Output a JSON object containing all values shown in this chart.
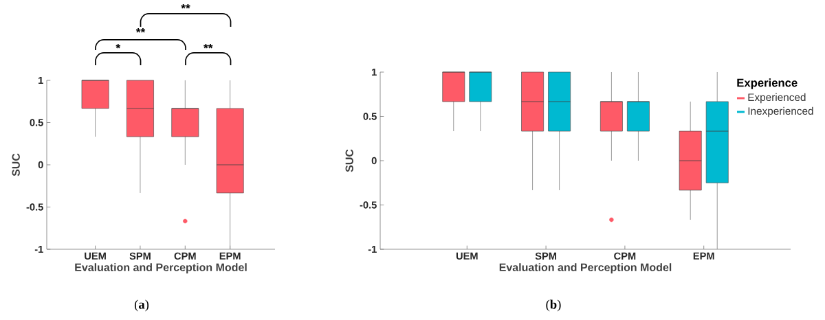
{
  "chart_data": [
    {
      "type": "box",
      "categories": [
        "UEM",
        "SPM",
        "CPM",
        "EPM"
      ],
      "xlabel": "Evaluation and Perception Model",
      "ylabel": "SUC",
      "ylim": [
        -1,
        1
      ],
      "yticks": [
        -1,
        -0.5,
        0,
        0.5,
        1
      ],
      "grid": false,
      "legend": false,
      "series": [
        {
          "color": "#fe5a67",
          "boxes": [
            {
              "low": 0.333,
              "q1": 0.667,
              "median": 1,
              "q3": 1,
              "high": 1
            },
            {
              "low": -0.333,
              "q1": 0.333,
              "median": 0.667,
              "q3": 1,
              "high": 1
            },
            {
              "low": 0,
              "q1": 0.333,
              "median": 0.667,
              "q3": 0.667,
              "high": 1,
              "outliers": [
                -0.667
              ]
            },
            {
              "low": -1,
              "q1": -0.333,
              "median": 0,
              "q3": 0.667,
              "high": 1
            }
          ]
        }
      ],
      "annotations": [
        "**",
        "**",
        "*",
        "**",
        "(**a**)"
      ]
    },
    {
      "type": "box",
      "categories": [
        "UEM",
        "SPM",
        "CPM",
        "EPM"
      ],
      "xlabel": "Evaluation and Perception Model",
      "ylabel": "SUC",
      "ylim": [
        -1,
        1
      ],
      "yticks": [
        -1,
        -0.5,
        0,
        0.5,
        1
      ],
      "grid": false,
      "legend": "right",
      "legend_title": "Experience",
      "series": [
        {
          "name": "Experienced",
          "color": "#fe5a67",
          "boxes": [
            {
              "low": 0.333,
              "q1": 0.667,
              "median": 1,
              "q3": 1,
              "high": 1
            },
            {
              "low": -0.333,
              "q1": 0.333,
              "median": 0.667,
              "q3": 1,
              "high": 1
            },
            {
              "low": 0,
              "q1": 0.333,
              "median": 0.667,
              "q3": 0.667,
              "high": 1,
              "outliers": [
                -0.667
              ]
            },
            {
              "low": -0.667,
              "q1": -0.333,
              "median": 0,
              "q3": 0.333,
              "high": 0.667
            }
          ]
        },
        {
          "name": "Inexperienced",
          "color": "#00b9d1",
          "boxes": [
            {
              "low": 0.333,
              "q1": 0.667,
              "median": 1,
              "q3": 1,
              "high": 1
            },
            {
              "low": -0.333,
              "q1": 0.333,
              "median": 0.667,
              "q3": 1,
              "high": 1
            },
            {
              "low": 0,
              "q1": 0.333,
              "median": 0.667,
              "q3": 0.667,
              "high": 1
            },
            {
              "low": -1,
              "q1": -0.25,
              "median": 0.333,
              "q3": 0.667,
              "high": 1
            }
          ]
        }
      ],
      "annotations": [
        "(**b**)"
      ]
    }
  ]
}
